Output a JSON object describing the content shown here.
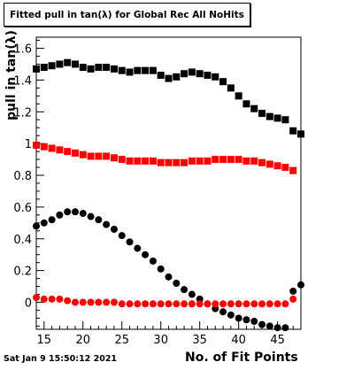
{
  "title": "Fitted pull in tan(λ) for Global Rec All NoHits",
  "footer_date": "Sat Jan  9 15:50:12 2021",
  "chart_data": {
    "type": "scatter",
    "title": "Fitted pull in tan(λ) for Global Rec All NoHits",
    "xlabel": "No. of Fit Points",
    "ylabel": "pull in tan(λ)",
    "xlim": [
      14,
      48
    ],
    "ylim": [
      -0.17,
      1.67
    ],
    "x_ticks": [
      15,
      20,
      25,
      30,
      35,
      40,
      45
    ],
    "y_ticks": [
      0,
      0.2,
      0.4,
      0.6,
      0.8,
      1,
      1.2,
      1.4,
      1.6
    ],
    "y_tick_labels": [
      "0",
      "0.2",
      "0.4",
      "0.6",
      "0.8",
      "1",
      "1.2",
      "1.4",
      "1.6"
    ],
    "grid": false,
    "legend": "none",
    "series": [
      {
        "marker": "square",
        "color": "#000000",
        "x": [
          14,
          15,
          16,
          17,
          18,
          19,
          20,
          21,
          22,
          23,
          24,
          25,
          26,
          27,
          28,
          29,
          30,
          31,
          32,
          33,
          34,
          35,
          36,
          37,
          38,
          39,
          40,
          41,
          42,
          43,
          44,
          45,
          46,
          47,
          48
        ],
        "y": [
          1.47,
          1.48,
          1.49,
          1.5,
          1.51,
          1.5,
          1.48,
          1.47,
          1.48,
          1.48,
          1.47,
          1.46,
          1.45,
          1.46,
          1.46,
          1.46,
          1.43,
          1.41,
          1.42,
          1.44,
          1.45,
          1.44,
          1.43,
          1.42,
          1.39,
          1.35,
          1.3,
          1.25,
          1.22,
          1.19,
          1.17,
          1.16,
          1.15,
          1.08,
          1.06
        ]
      },
      {
        "marker": "square",
        "color": "#ff0000",
        "x": [
          14,
          15,
          16,
          17,
          18,
          19,
          20,
          21,
          22,
          23,
          24,
          25,
          26,
          27,
          28,
          29,
          30,
          31,
          32,
          33,
          34,
          35,
          36,
          37,
          38,
          39,
          40,
          41,
          42,
          43,
          44,
          45,
          46,
          47
        ],
        "y": [
          0.99,
          0.98,
          0.97,
          0.96,
          0.95,
          0.94,
          0.93,
          0.92,
          0.92,
          0.92,
          0.91,
          0.9,
          0.89,
          0.89,
          0.89,
          0.89,
          0.88,
          0.88,
          0.88,
          0.88,
          0.89,
          0.89,
          0.89,
          0.9,
          0.9,
          0.9,
          0.9,
          0.89,
          0.89,
          0.88,
          0.87,
          0.86,
          0.85,
          0.83
        ]
      },
      {
        "marker": "circle",
        "color": "#000000",
        "x": [
          14,
          15,
          16,
          17,
          18,
          19,
          20,
          21,
          22,
          23,
          24,
          25,
          26,
          27,
          28,
          29,
          30,
          31,
          32,
          33,
          34,
          35,
          36,
          37,
          38,
          39,
          40,
          41,
          42,
          43,
          44,
          45,
          46,
          47,
          48
        ],
        "y": [
          0.48,
          0.5,
          0.52,
          0.55,
          0.57,
          0.57,
          0.56,
          0.54,
          0.52,
          0.49,
          0.46,
          0.42,
          0.38,
          0.34,
          0.3,
          0.26,
          0.21,
          0.16,
          0.12,
          0.08,
          0.05,
          0.02,
          -0.01,
          -0.04,
          -0.06,
          -0.08,
          -0.1,
          -0.11,
          -0.12,
          -0.14,
          -0.15,
          -0.16,
          -0.16,
          0.07,
          0.11
        ]
      },
      {
        "marker": "circle",
        "color": "#ff0000",
        "x": [
          14,
          15,
          16,
          17,
          18,
          19,
          20,
          21,
          22,
          23,
          24,
          25,
          26,
          27,
          28,
          29,
          30,
          31,
          32,
          33,
          34,
          35,
          36,
          37,
          38,
          39,
          40,
          41,
          42,
          43,
          44,
          45,
          46,
          47
        ],
        "y": [
          0.03,
          0.02,
          0.02,
          0.02,
          0.01,
          0.0,
          0.0,
          0.0,
          0.0,
          0.0,
          0.0,
          -0.01,
          -0.01,
          -0.01,
          -0.01,
          -0.01,
          -0.01,
          -0.01,
          -0.01,
          -0.01,
          -0.01,
          -0.01,
          -0.01,
          -0.01,
          -0.01,
          -0.01,
          -0.01,
          -0.01,
          -0.01,
          -0.01,
          -0.01,
          -0.01,
          -0.01,
          0.02
        ]
      }
    ]
  }
}
